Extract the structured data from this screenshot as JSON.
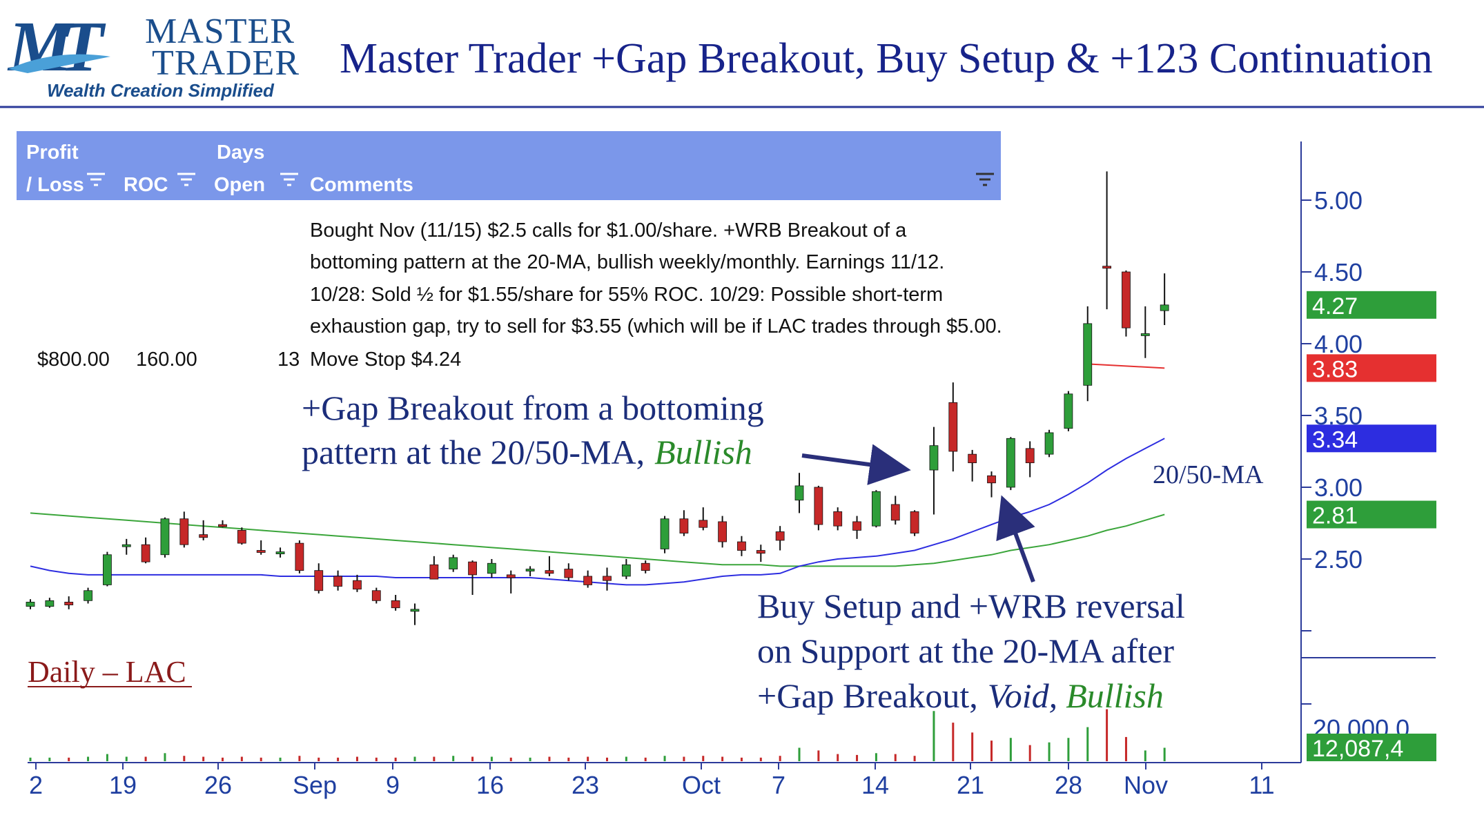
{
  "logo": {
    "mark": "MT",
    "word1": "MASTER",
    "word2": "TRADER",
    "tagline": "Wealth Creation Simplified"
  },
  "title": "Master Trader +Gap Breakout, Buy Setup & +123 Continuation",
  "colors": {
    "title_blue": "#17238a",
    "table_header": "#7b97ea",
    "up_candle": "#2e9e3a",
    "down_candle": "#c62828",
    "ma20": "#2d2de0",
    "ma50": "#3aa53a",
    "stop_line": "#e53030",
    "axis": "#2b3a9a"
  },
  "table": {
    "headers": {
      "profit_1": "Profit",
      "profit_2": "/ Loss",
      "roc": "ROC",
      "days_1": "Days",
      "days_2": "Open",
      "comments": "Comments"
    },
    "row": {
      "profit": "$800.00",
      "roc": "160.00",
      "days": "13",
      "comment_lines": [
        "Bought Nov (11/15) $2.5 calls for $1.00/share.  +WRB Breakout of a",
        "bottoming pattern at the 20-MA, bullish weekly/monthly. Earnings 11/12.",
        "10/28:   Sold ½ for $1.55/share for 55% ROC.    10/29:  Possible short-term",
        "exhaustion gap, try to sell for $3.55 (which will be if LAC trades through $5.00.",
        "Move Stop $4.24"
      ]
    }
  },
  "annotations": {
    "gap_line1": "+Gap Breakout from a bottoming",
    "gap_line2": "pattern at the 20/50-MA,",
    "gap_bullish": "Bullish",
    "buy_line1": "Buy Setup and +WRB reversal",
    "buy_line2": "on Support at the 20-MA after",
    "buy_line3": "+Gap Breakout,",
    "buy_void": "Void,",
    "buy_bullish": "Bullish",
    "ma_label": "20/50-MA",
    "daily_label": "Daily – LAC"
  },
  "chart_data": {
    "type": "candlestick",
    "symbol": "LAC",
    "timeframe": "Daily",
    "x_ticks": [
      "2",
      "19",
      "26",
      "Sep",
      "9",
      "16",
      "23",
      "Oct",
      "7",
      "14",
      "21",
      "28",
      "Nov",
      "11"
    ],
    "y_ticks": [
      "2.50",
      "3.00",
      "3.50",
      "4.00",
      "4.50",
      "5.00"
    ],
    "y_tick_values": [
      2.5,
      3.0,
      3.5,
      4.0,
      4.5,
      5.0
    ],
    "ylim": [
      1.8,
      5.4
    ],
    "price_badges": [
      {
        "label": "4.27",
        "value": 4.27,
        "color": "#2e9e3a"
      },
      {
        "label": "3.83",
        "value": 3.83,
        "color": "#e53030"
      },
      {
        "label": "3.34",
        "value": 3.34,
        "color": "#2d2de0"
      },
      {
        "label": "2.81",
        "value": 2.81,
        "color": "#2e9e3a"
      }
    ],
    "volume_badge": {
      "label": "12,087,4",
      "color": "#2e9e3a"
    },
    "volume_overlap_text": "20,000,0",
    "stop_line_value": 3.83,
    "candles": [
      {
        "o": 2.17,
        "h": 2.22,
        "l": 2.15,
        "c": 2.2
      },
      {
        "o": 2.17,
        "h": 2.23,
        "l": 2.16,
        "c": 2.21
      },
      {
        "o": 2.2,
        "h": 2.24,
        "l": 2.15,
        "c": 2.18
      },
      {
        "o": 2.21,
        "h": 2.3,
        "l": 2.19,
        "c": 2.28
      },
      {
        "o": 2.32,
        "h": 2.55,
        "l": 2.31,
        "c": 2.53
      },
      {
        "o": 2.59,
        "h": 2.64,
        "l": 2.53,
        "c": 2.6
      },
      {
        "o": 2.6,
        "h": 2.65,
        "l": 2.47,
        "c": 2.48
      },
      {
        "o": 2.53,
        "h": 2.79,
        "l": 2.51,
        "c": 2.78
      },
      {
        "o": 2.78,
        "h": 2.83,
        "l": 2.58,
        "c": 2.6
      },
      {
        "o": 2.67,
        "h": 2.77,
        "l": 2.63,
        "c": 2.65
      },
      {
        "o": 2.74,
        "h": 2.77,
        "l": 2.72,
        "c": 2.73
      },
      {
        "o": 2.7,
        "h": 2.72,
        "l": 2.6,
        "c": 2.61
      },
      {
        "o": 2.56,
        "h": 2.63,
        "l": 2.53,
        "c": 2.55
      },
      {
        "o": 2.55,
        "h": 2.58,
        "l": 2.51,
        "c": 2.55
      },
      {
        "o": 2.61,
        "h": 2.63,
        "l": 2.4,
        "c": 2.42
      },
      {
        "o": 2.42,
        "h": 2.47,
        "l": 2.26,
        "c": 2.28
      },
      {
        "o": 2.38,
        "h": 2.42,
        "l": 2.28,
        "c": 2.31
      },
      {
        "o": 2.35,
        "h": 2.39,
        "l": 2.27,
        "c": 2.29
      },
      {
        "o": 2.28,
        "h": 2.3,
        "l": 2.19,
        "c": 2.21
      },
      {
        "o": 2.21,
        "h": 2.25,
        "l": 2.14,
        "c": 2.16
      },
      {
        "o": 2.15,
        "h": 2.19,
        "l": 2.04,
        "c": 2.15
      },
      {
        "o": 2.46,
        "h": 2.52,
        "l": 2.38,
        "c": 2.36
      },
      {
        "o": 2.43,
        "h": 2.53,
        "l": 2.41,
        "c": 2.51
      },
      {
        "o": 2.48,
        "h": 2.49,
        "l": 2.25,
        "c": 2.39
      },
      {
        "o": 2.4,
        "h": 2.5,
        "l": 2.37,
        "c": 2.47
      },
      {
        "o": 2.39,
        "h": 2.42,
        "l": 2.26,
        "c": 2.37
      },
      {
        "o": 2.43,
        "h": 2.45,
        "l": 2.38,
        "c": 2.43
      },
      {
        "o": 2.42,
        "h": 2.52,
        "l": 2.38,
        "c": 2.4
      },
      {
        "o": 2.43,
        "h": 2.47,
        "l": 2.35,
        "c": 2.37
      },
      {
        "o": 2.38,
        "h": 2.42,
        "l": 2.3,
        "c": 2.32
      },
      {
        "o": 2.38,
        "h": 2.44,
        "l": 2.28,
        "c": 2.35
      },
      {
        "o": 2.38,
        "h": 2.5,
        "l": 2.36,
        "c": 2.46
      },
      {
        "o": 2.47,
        "h": 2.49,
        "l": 2.4,
        "c": 2.42
      },
      {
        "o": 2.57,
        "h": 2.8,
        "l": 2.54,
        "c": 2.78
      },
      {
        "o": 2.78,
        "h": 2.84,
        "l": 2.66,
        "c": 2.68
      },
      {
        "o": 2.77,
        "h": 2.86,
        "l": 2.7,
        "c": 2.72
      },
      {
        "o": 2.76,
        "h": 2.8,
        "l": 2.58,
        "c": 2.62
      },
      {
        "o": 2.62,
        "h": 2.66,
        "l": 2.52,
        "c": 2.56
      },
      {
        "o": 2.56,
        "h": 2.6,
        "l": 2.48,
        "c": 2.54
      },
      {
        "o": 2.69,
        "h": 2.73,
        "l": 2.56,
        "c": 2.63
      },
      {
        "o": 2.91,
        "h": 3.1,
        "l": 2.82,
        "c": 3.01
      },
      {
        "o": 3.0,
        "h": 3.01,
        "l": 2.7,
        "c": 2.74
      },
      {
        "o": 2.83,
        "h": 2.86,
        "l": 2.7,
        "c": 2.73
      },
      {
        "o": 2.76,
        "h": 2.8,
        "l": 2.64,
        "c": 2.7
      },
      {
        "o": 2.73,
        "h": 2.98,
        "l": 2.72,
        "c": 2.97
      },
      {
        "o": 2.88,
        "h": 2.94,
        "l": 2.74,
        "c": 2.77
      },
      {
        "o": 2.83,
        "h": 2.84,
        "l": 2.66,
        "c": 2.68
      },
      {
        "o": 3.12,
        "h": 3.42,
        "l": 2.81,
        "c": 3.29
      },
      {
        "o": 3.59,
        "h": 3.73,
        "l": 3.11,
        "c": 3.25
      },
      {
        "o": 3.23,
        "h": 3.26,
        "l": 3.04,
        "c": 3.17
      },
      {
        "o": 3.08,
        "h": 3.11,
        "l": 2.93,
        "c": 3.03
      },
      {
        "o": 3.0,
        "h": 3.35,
        "l": 2.98,
        "c": 3.34
      },
      {
        "o": 3.27,
        "h": 3.32,
        "l": 3.07,
        "c": 3.17
      },
      {
        "o": 3.23,
        "h": 3.4,
        "l": 3.21,
        "c": 3.38
      },
      {
        "o": 3.41,
        "h": 3.67,
        "l": 3.39,
        "c": 3.65
      },
      {
        "o": 3.71,
        "h": 4.26,
        "l": 3.6,
        "c": 4.14
      },
      {
        "o": 4.54,
        "h": 5.2,
        "l": 4.24,
        "c": 4.53
      },
      {
        "o": 4.5,
        "h": 4.51,
        "l": 4.05,
        "c": 4.11
      },
      {
        "o": 4.07,
        "h": 4.26,
        "l": 3.9,
        "c": 4.07
      },
      {
        "o": 4.23,
        "h": 4.49,
        "l": 4.13,
        "c": 4.27
      }
    ],
    "ma20": [
      2.45,
      2.42,
      2.4,
      2.39,
      2.39,
      2.39,
      2.39,
      2.39,
      2.39,
      2.39,
      2.39,
      2.39,
      2.39,
      2.38,
      2.38,
      2.38,
      2.38,
      2.38,
      2.38,
      2.37,
      2.37,
      2.37,
      2.37,
      2.37,
      2.37,
      2.37,
      2.37,
      2.36,
      2.35,
      2.34,
      2.33,
      2.32,
      2.32,
      2.33,
      2.34,
      2.36,
      2.38,
      2.39,
      2.39,
      2.4,
      2.45,
      2.48,
      2.5,
      2.51,
      2.52,
      2.54,
      2.56,
      2.6,
      2.64,
      2.69,
      2.74,
      2.79,
      2.83,
      2.88,
      2.95,
      3.03,
      3.12,
      3.2,
      3.27,
      3.34
    ],
    "ma50": [
      2.82,
      2.81,
      2.8,
      2.79,
      2.78,
      2.77,
      2.76,
      2.75,
      2.74,
      2.73,
      2.72,
      2.71,
      2.7,
      2.69,
      2.68,
      2.67,
      2.66,
      2.65,
      2.64,
      2.63,
      2.62,
      2.61,
      2.6,
      2.59,
      2.58,
      2.57,
      2.56,
      2.55,
      2.54,
      2.53,
      2.52,
      2.51,
      2.5,
      2.49,
      2.48,
      2.47,
      2.46,
      2.46,
      2.46,
      2.45,
      2.45,
      2.45,
      2.45,
      2.45,
      2.45,
      2.45,
      2.46,
      2.47,
      2.49,
      2.51,
      2.53,
      2.56,
      2.58,
      2.6,
      2.63,
      2.66,
      2.7,
      2.73,
      2.77,
      2.81
    ],
    "volume": [
      0.4,
      0.4,
      0.4,
      0.5,
      0.8,
      0.5,
      0.5,
      0.9,
      0.6,
      0.5,
      0.4,
      0.5,
      0.4,
      0.4,
      0.6,
      0.4,
      0.4,
      0.5,
      0.4,
      0.4,
      0.5,
      0.5,
      0.6,
      0.5,
      0.5,
      0.4,
      0.4,
      0.5,
      0.4,
      0.5,
      0.4,
      0.5,
      0.4,
      0.6,
      0.5,
      0.6,
      0.5,
      0.4,
      0.4,
      0.6,
      1.5,
      1.2,
      0.8,
      0.7,
      0.9,
      0.8,
      0.6,
      5.6,
      4.3,
      3.2,
      2.3,
      2.6,
      1.8,
      2.1,
      2.6,
      3.8,
      5.8,
      2.7,
      1.2,
      1.5
    ]
  }
}
